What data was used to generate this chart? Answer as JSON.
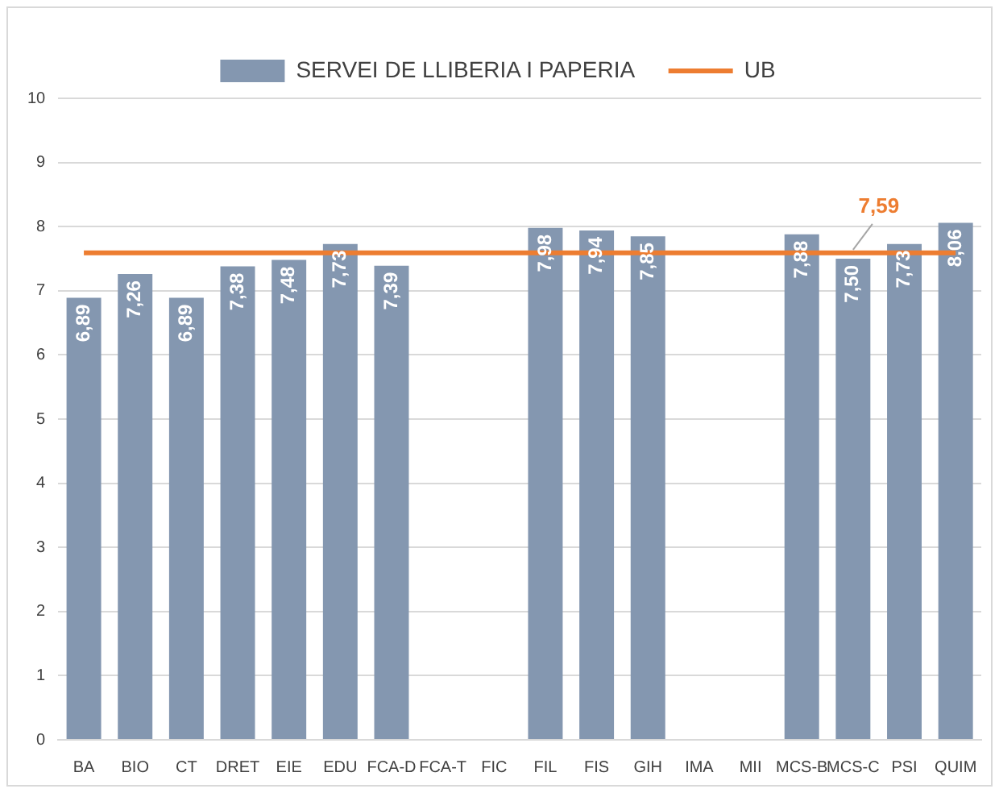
{
  "chart_data": {
    "type": "bar",
    "categories": [
      "BA",
      "BIO",
      "CT",
      "DRET",
      "EIE",
      "EDU",
      "FCA-D",
      "FCA-T",
      "FIC",
      "FIL",
      "FIS",
      "GIH",
      "IMA",
      "MII",
      "MCS-B",
      "MCS-C",
      "PSI",
      "QUIM"
    ],
    "series": [
      {
        "name": "SERVEI DE LLIBERIA I PAPERIA",
        "color": "#8497b0",
        "values": [
          6.89,
          7.26,
          6.89,
          7.38,
          7.48,
          7.73,
          7.39,
          null,
          null,
          7.98,
          7.94,
          7.85,
          null,
          null,
          7.88,
          7.5,
          7.73,
          8.06
        ],
        "value_labels": [
          "6,89",
          "7,26",
          "6,89",
          "7,38",
          "7,48",
          "7,73",
          "7,39",
          null,
          null,
          "7,98",
          "7,94",
          "7,85",
          null,
          null,
          "7,88",
          "7,50",
          "7,73",
          "8,06"
        ]
      },
      {
        "name": "UB",
        "type": "line",
        "color": "#ed7d31",
        "values": [
          7.59,
          7.59,
          7.59,
          7.59,
          7.59,
          7.59,
          7.59,
          7.59,
          7.59,
          7.59,
          7.59,
          7.59,
          7.59,
          7.59,
          7.59,
          7.59,
          7.59,
          7.59
        ],
        "value_labels": [
          null,
          null,
          null,
          null,
          null,
          null,
          null,
          null,
          null,
          null,
          null,
          null,
          null,
          null,
          null,
          "7,59",
          null,
          null
        ]
      }
    ],
    "ylim": [
      0,
      10
    ],
    "yticks": [
      0,
      1,
      2,
      3,
      4,
      5,
      6,
      7,
      8,
      9,
      10
    ],
    "grid": "y",
    "legend": "top",
    "marker": "none",
    "line_style": "solid"
  }
}
